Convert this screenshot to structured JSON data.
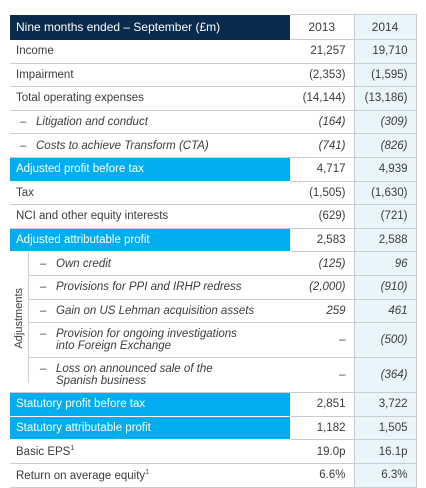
{
  "header": {
    "label": "Nine months ended – September (£m)",
    "col1": "2013",
    "col2": "2014"
  },
  "rows_top": [
    {
      "label": "Income",
      "v2013": "21,257",
      "v2014": "19,710"
    },
    {
      "label": "Impairment",
      "v2013": "(2,353)",
      "v2014": "(1,595)"
    },
    {
      "label": "Total operating expenses",
      "v2013": "(14,144)",
      "v2014": "(13,186)"
    },
    {
      "label": "Litigation and conduct",
      "v2013": "(164)",
      "v2014": "(309)"
    },
    {
      "label": "Costs to achieve Transform (CTA)",
      "v2013": "(741)",
      "v2014": "(826)"
    }
  ],
  "adjusted_pbt": {
    "label": "Adjusted profit before tax",
    "v2013": "4,717",
    "v2014": "4,939"
  },
  "rows_mid": [
    {
      "label": "Tax",
      "v2013": "(1,505)",
      "v2014": "(1,630)"
    },
    {
      "label": "NCI and other equity interests",
      "v2013": "(629)",
      "v2014": "(721)"
    }
  ],
  "adjusted_attr": {
    "label": "Adjusted attributable profit",
    "v2013": "2,583",
    "v2014": "2,588"
  },
  "adjustments": {
    "title": "Adjustments",
    "items": [
      {
        "label": "Own credit",
        "v2013": "(125)",
        "v2014": "96"
      },
      {
        "label": "Provisions for PPI and IRHP redress",
        "v2013": "(2,000)",
        "v2014": "(910)"
      },
      {
        "label": "Gain on US Lehman acquisition assets",
        "v2013": "259",
        "v2014": "461"
      },
      {
        "label": "Provision for ongoing investigations into Foreign Exchange",
        "v2013": "–",
        "v2014": "(500)"
      },
      {
        "label": "Loss on announced sale of the Spanish business",
        "v2013": "–",
        "v2014": "(364)"
      }
    ]
  },
  "statutory_pbt": {
    "label": "Statutory profit before tax",
    "v2013": "2,851",
    "v2014": "3,722"
  },
  "statutory_attr": {
    "label": "Statutory attributable profit",
    "v2013": "1,182",
    "v2014": "1,505"
  },
  "eps": {
    "label": "Basic EPS",
    "sup": "1",
    "v2013": "19.0p",
    "v2014": "16.1p"
  },
  "roe": {
    "label": "Return on average equity",
    "sup": "1",
    "v2013": "6.6%",
    "v2014": "6.3%"
  },
  "colors": {
    "navy": "#0b2b4e",
    "cyan": "#00aeef",
    "pale": "#eaf5fb"
  }
}
